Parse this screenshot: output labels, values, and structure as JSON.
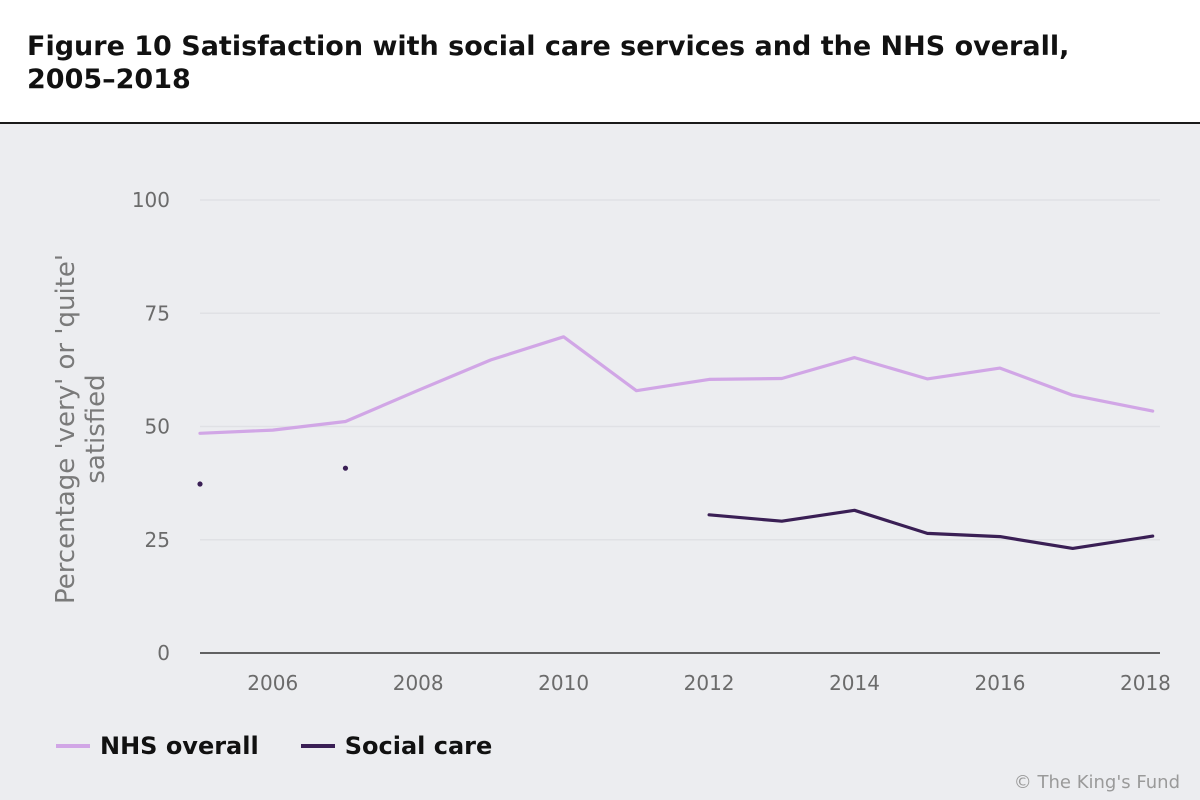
{
  "title": "Figure 10 Satisfaction with social care services and the NHS overall, 2005–2018",
  "credit": "© The King's Fund",
  "colors": {
    "nhs": "#d1a6e6",
    "social": "#3a1f55",
    "grid": "#e0e1e5",
    "axis": "#333333",
    "background": "#ecedf0"
  },
  "chart_data": {
    "type": "line",
    "title": "Figure 10 Satisfaction with social care services and the NHS overall, 2005–2018",
    "xlabel": "",
    "ylabel": "Percentage 'very' or 'quite' satisfied",
    "ylabel_lines": [
      "Percentage 'very' or 'quite'",
      "satisfied"
    ],
    "xlim": [
      2005,
      2018.2
    ],
    "ylim": [
      0,
      100
    ],
    "xticks": [
      2006,
      2008,
      2010,
      2012,
      2014,
      2016,
      2018
    ],
    "yticks": [
      0,
      25,
      50,
      75,
      100
    ],
    "grid": true,
    "legend_position": "bottom-left",
    "series": [
      {
        "name": "NHS overall",
        "color": "#d1a6e6",
        "x": [
          2005,
          2006,
          2007,
          2008,
          2009,
          2010,
          2011,
          2012,
          2013,
          2014,
          2015,
          2016,
          2017,
          2018.1
        ],
        "values": [
          48.5,
          49.2,
          51.1,
          58,
          64.7,
          69.8,
          57.9,
          60.4,
          60.6,
          65.2,
          60.5,
          62.9,
          56.9,
          53.4
        ]
      },
      {
        "name": "Social care",
        "color": "#3a1f55",
        "x": [
          2005,
          2007,
          2012,
          2013,
          2014,
          2015,
          2016,
          2017,
          2018.1
        ],
        "values": [
          37.3,
          40.8,
          30.5,
          29.1,
          31.5,
          26.4,
          25.7,
          23.1,
          25.8
        ],
        "isolated_points": [
          0,
          1
        ]
      }
    ]
  }
}
